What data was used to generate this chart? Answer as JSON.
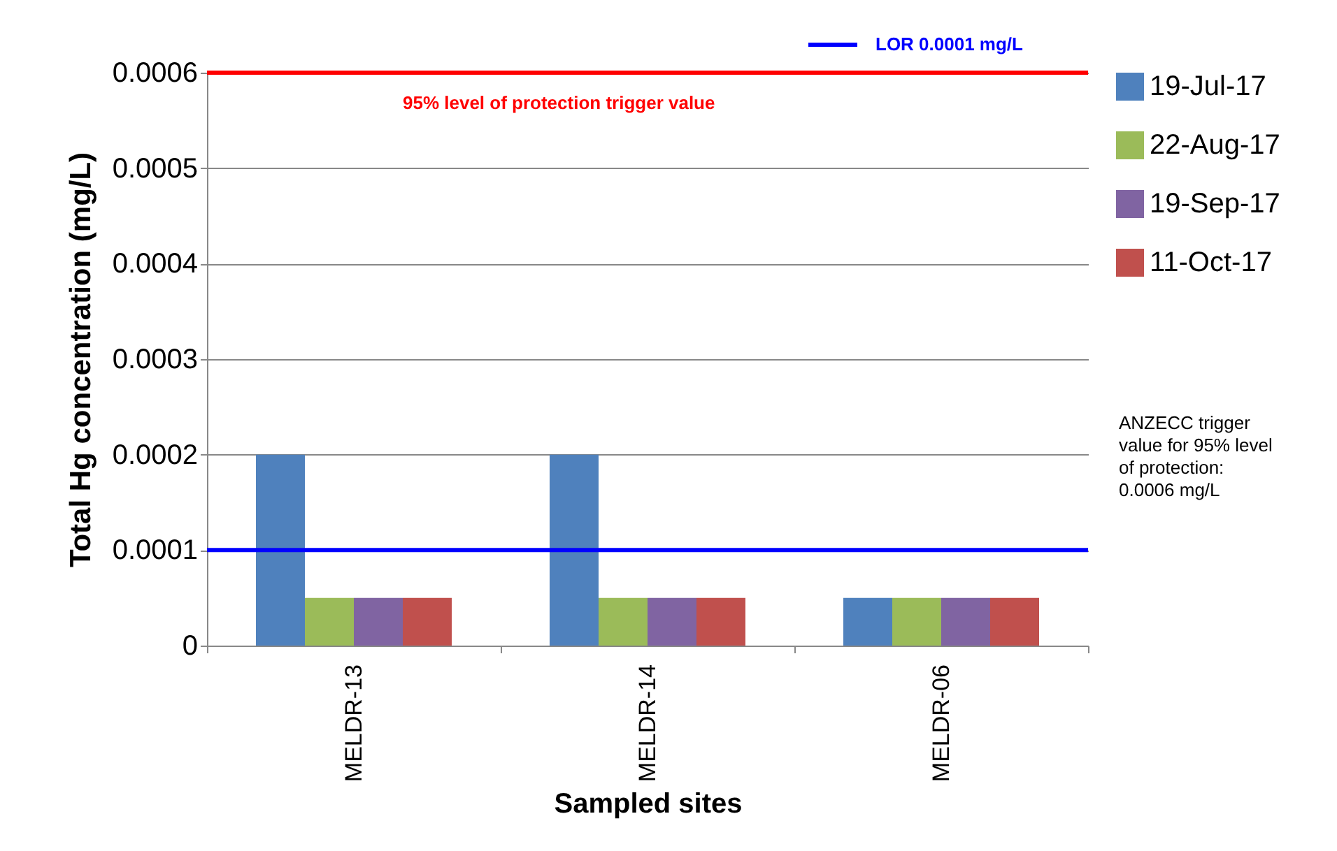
{
  "chart_data": {
    "type": "bar",
    "xlabel": "Sampled sites",
    "ylabel": "Total Hg concentration (mg/L)",
    "categories": [
      "MELDR-13",
      "MELDR-14",
      "MELDR-06"
    ],
    "series": [
      {
        "name": "19-Jul-17",
        "color": "#4f81bd",
        "values": [
          0.0002,
          0.0002,
          5e-05
        ]
      },
      {
        "name": "22-Aug-17",
        "color": "#9bbb59",
        "values": [
          5e-05,
          5e-05,
          5e-05
        ]
      },
      {
        "name": "19-Sep-17",
        "color": "#8064a2",
        "values": [
          5e-05,
          5e-05,
          5e-05
        ]
      },
      {
        "name": "11-Oct-17",
        "color": "#c0504d",
        "values": [
          5e-05,
          5e-05,
          5e-05
        ]
      }
    ],
    "ylim": [
      0,
      0.0006
    ],
    "yticks": [
      0,
      0.0001,
      0.0002,
      0.0003,
      0.0004,
      0.0005,
      0.0006
    ],
    "grid": "y",
    "legend": "top right",
    "ref_lines": [
      {
        "axis": "y",
        "value": 0.0006,
        "label": "95%  level of protection trigger value",
        "color": "#ff0000"
      },
      {
        "axis": "y",
        "value": 0.0001,
        "label": "LOR 0.0001 mg/L",
        "color": "#0000ff"
      }
    ],
    "annotations": [
      "ANZECC trigger value for 95% level of protection: 0.0006 mg/L"
    ]
  }
}
